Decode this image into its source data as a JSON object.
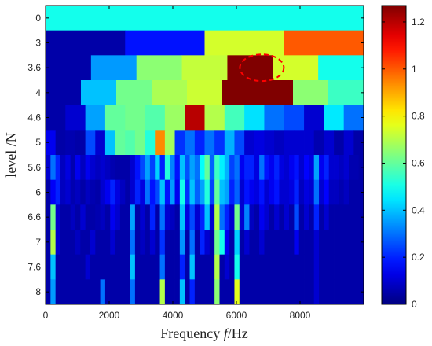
{
  "chart_data": {
    "type": "heatmap",
    "xlabel": {
      "prefix": "Frequency ",
      "italic": "f",
      "suffix": "/Hz"
    },
    "ylabel": "level /N",
    "xlim": [
      0,
      10000
    ],
    "xticks": [
      "0",
      "2000",
      "4000",
      "6000",
      "8000"
    ],
    "xtick_values": [
      0,
      2000,
      4000,
      6000,
      8000
    ],
    "yticks": [
      "0",
      "3",
      "3.6",
      "4",
      "4.6",
      "5",
      "5.6",
      "6",
      "6.6",
      "7",
      "7.6",
      "8"
    ],
    "colorbar": {
      "ticks": [
        "0",
        "0.2",
        "0.4",
        "0.6",
        "0.8",
        "1",
        "1.2"
      ],
      "tick_values": [
        0,
        0.2,
        0.4,
        0.6,
        0.8,
        1,
        1.2
      ],
      "range": [
        0,
        1.27
      ]
    },
    "colormap": "jet",
    "grid": false,
    "highlight": {
      "center_x": 6800,
      "level_index": 2,
      "color": "#ff0000",
      "style": "dashed"
    },
    "rows": [
      {
        "level": "0",
        "values": [
          0.5
        ]
      },
      {
        "level": "3",
        "values": [
          0.05,
          0.18,
          0.74,
          1.0
        ]
      },
      {
        "level": "3.6",
        "values": [
          0.05,
          0.35,
          0.65,
          0.72,
          1.27,
          0.74,
          0.5
        ]
      },
      {
        "level": "4",
        "values": [
          0.05,
          0.4,
          0.62,
          0.69,
          0.73,
          1.27,
          1.27,
          0.65,
          0.55
        ]
      },
      {
        "level": "4.6",
        "values": [
          0.05,
          0.1,
          0.36,
          0.6,
          0.62,
          0.58,
          0.67,
          1.2,
          0.7,
          0.56,
          0.44,
          0.3,
          0.25,
          0.1,
          0.45,
          0.3
        ]
      },
      {
        "level": "5",
        "values": [
          0.14,
          0.05,
          0.06,
          0.05,
          0.25,
          0.1,
          0.4,
          0.6,
          0.58,
          0.62,
          0.52,
          0.94,
          0.68,
          0.22,
          0.3,
          0.2,
          0.3,
          0.22,
          0.38,
          0.25,
          0.1,
          0.12,
          0.1,
          0.08,
          0.1,
          0.1,
          0.1,
          0.06,
          0.1,
          0.05,
          0.1,
          0.05
        ]
      },
      {
        "level": "5.6",
        "values": [
          0.1,
          0.3,
          0.2,
          0.08,
          0.12,
          0.06,
          0.14,
          0.08,
          0.14,
          0.1,
          0.08,
          0.1,
          0.08,
          0.06,
          0.05,
          0.05,
          0.05,
          0.1,
          0.18,
          0.25,
          0.36,
          0.24,
          0.42,
          0.2,
          0.52,
          0.32,
          0.18,
          0.4,
          0.26,
          0.36,
          0.3,
          0.48,
          0.6,
          0.28,
          0.55,
          0.46,
          0.38,
          0.24,
          0.3,
          0.14,
          0.2,
          0.2,
          0.12,
          0.3,
          0.18,
          0.14,
          0.2,
          0.12,
          0.1,
          0.14,
          0.18,
          0.1,
          0.16,
          0.12,
          0.36,
          0.14,
          0.2,
          0.1,
          0.1,
          0.08,
          0.1,
          0.06,
          0.06,
          0.05
        ]
      },
      {
        "level": "6",
        "values": [
          0.05,
          0.15,
          0.2,
          0.08,
          0.1,
          0.06,
          0.08,
          0.05,
          0.08,
          0.06,
          0.05,
          0.1,
          0.14,
          0.2,
          0.12,
          0.08,
          0.05,
          0.1,
          0.2,
          0.12,
          0.3,
          0.18,
          0.25,
          0.4,
          0.18,
          0.35,
          0.14,
          0.5,
          0.22,
          0.4,
          0.28,
          0.36,
          0.52,
          0.24,
          0.6,
          0.4,
          0.36,
          0.2,
          0.28,
          0.1,
          0.18,
          0.14,
          0.12,
          0.18,
          0.1,
          0.14,
          0.18,
          0.1,
          0.1,
          0.12,
          0.2,
          0.08,
          0.12,
          0.1,
          0.3,
          0.1,
          0.16,
          0.08,
          0.08,
          0.06,
          0.08,
          0.05,
          0.05,
          0.05
        ]
      },
      {
        "level": "6.6",
        "values": [
          0.05,
          0.62,
          0.1,
          0.05,
          0.05,
          0.08,
          0.05,
          0.1,
          0.05,
          0.05,
          0.06,
          0.08,
          0.05,
          0.14,
          0.1,
          0.05,
          0.05,
          0.36,
          0.05,
          0.1,
          0.05,
          0.2,
          0.05,
          0.3,
          0.1,
          0.08,
          0.05,
          0.4,
          0.12,
          0.25,
          0.1,
          0.2,
          0.4,
          0.1,
          0.7,
          0.3,
          0.2,
          0.1,
          0.62,
          0.1,
          0.32,
          0.08,
          0.05,
          0.14,
          0.1,
          0.05,
          0.1,
          0.05,
          0.1,
          0.05,
          0.25,
          0.05,
          0.1,
          0.05,
          0.2,
          0.05,
          0.1,
          0.05,
          0.05,
          0.05,
          0.05,
          0.05,
          0.05,
          0.05
        ]
      },
      {
        "level": "7",
        "values": [
          0.05,
          0.7,
          0.1,
          0.05,
          0.05,
          0.05,
          0.08,
          0.05,
          0.05,
          0.1,
          0.05,
          0.05,
          0.05,
          0.1,
          0.05,
          0.05,
          0.05,
          0.3,
          0.05,
          0.08,
          0.05,
          0.1,
          0.05,
          0.22,
          0.05,
          0.05,
          0.05,
          0.34,
          0.05,
          0.3,
          0.05,
          0.2,
          0.1,
          0.05,
          0.62,
          0.5,
          0.14,
          0.05,
          0.42,
          0.05,
          0.1,
          0.05,
          0.05,
          0.1,
          0.05,
          0.05,
          0.05,
          0.05,
          0.05,
          0.05,
          0.14,
          0.05,
          0.05,
          0.05,
          0.1,
          0.05,
          0.05,
          0.05,
          0.05,
          0.05,
          0.05,
          0.05,
          0.05,
          0.05
        ]
      },
      {
        "level": "7.6",
        "values": [
          0.05,
          0.4,
          0.05,
          0.05,
          0.05,
          0.05,
          0.05,
          0.05,
          0.1,
          0.05,
          0.05,
          0.05,
          0.05,
          0.05,
          0.05,
          0.05,
          0.05,
          0.4,
          0.05,
          0.05,
          0.05,
          0.05,
          0.05,
          0.3,
          0.05,
          0.05,
          0.05,
          0.2,
          0.05,
          0.4,
          0.05,
          0.05,
          0.05,
          0.05,
          0.7,
          0.05,
          0.1,
          0.05,
          0.5,
          0.05,
          0.05,
          0.05,
          0.05,
          0.05,
          0.05,
          0.05,
          0.05,
          0.05,
          0.05,
          0.05,
          0.05,
          0.05,
          0.05,
          0.05,
          0.1,
          0.05,
          0.05,
          0.05,
          0.05,
          0.05,
          0.05,
          0.05,
          0.05,
          0.05
        ]
      },
      {
        "level": "8",
        "values": [
          0.05,
          0.35,
          0.05,
          0.05,
          0.05,
          0.05,
          0.05,
          0.05,
          0.05,
          0.05,
          0.05,
          0.3,
          0.05,
          0.05,
          0.05,
          0.05,
          0.05,
          0.3,
          0.05,
          0.05,
          0.05,
          0.05,
          0.05,
          0.7,
          0.05,
          0.05,
          0.05,
          0.4,
          0.05,
          0.2,
          0.05,
          0.05,
          0.05,
          0.05,
          0.65,
          0.05,
          0.05,
          0.05,
          0.76,
          0.05,
          0.05,
          0.05,
          0.05,
          0.05,
          0.05,
          0.05,
          0.05,
          0.05,
          0.05,
          0.05,
          0.05,
          0.05,
          0.05,
          0.05,
          0.1,
          0.05,
          0.05,
          0.05,
          0.05,
          0.05,
          0.05,
          0.05,
          0.05,
          0.05
        ]
      }
    ]
  }
}
